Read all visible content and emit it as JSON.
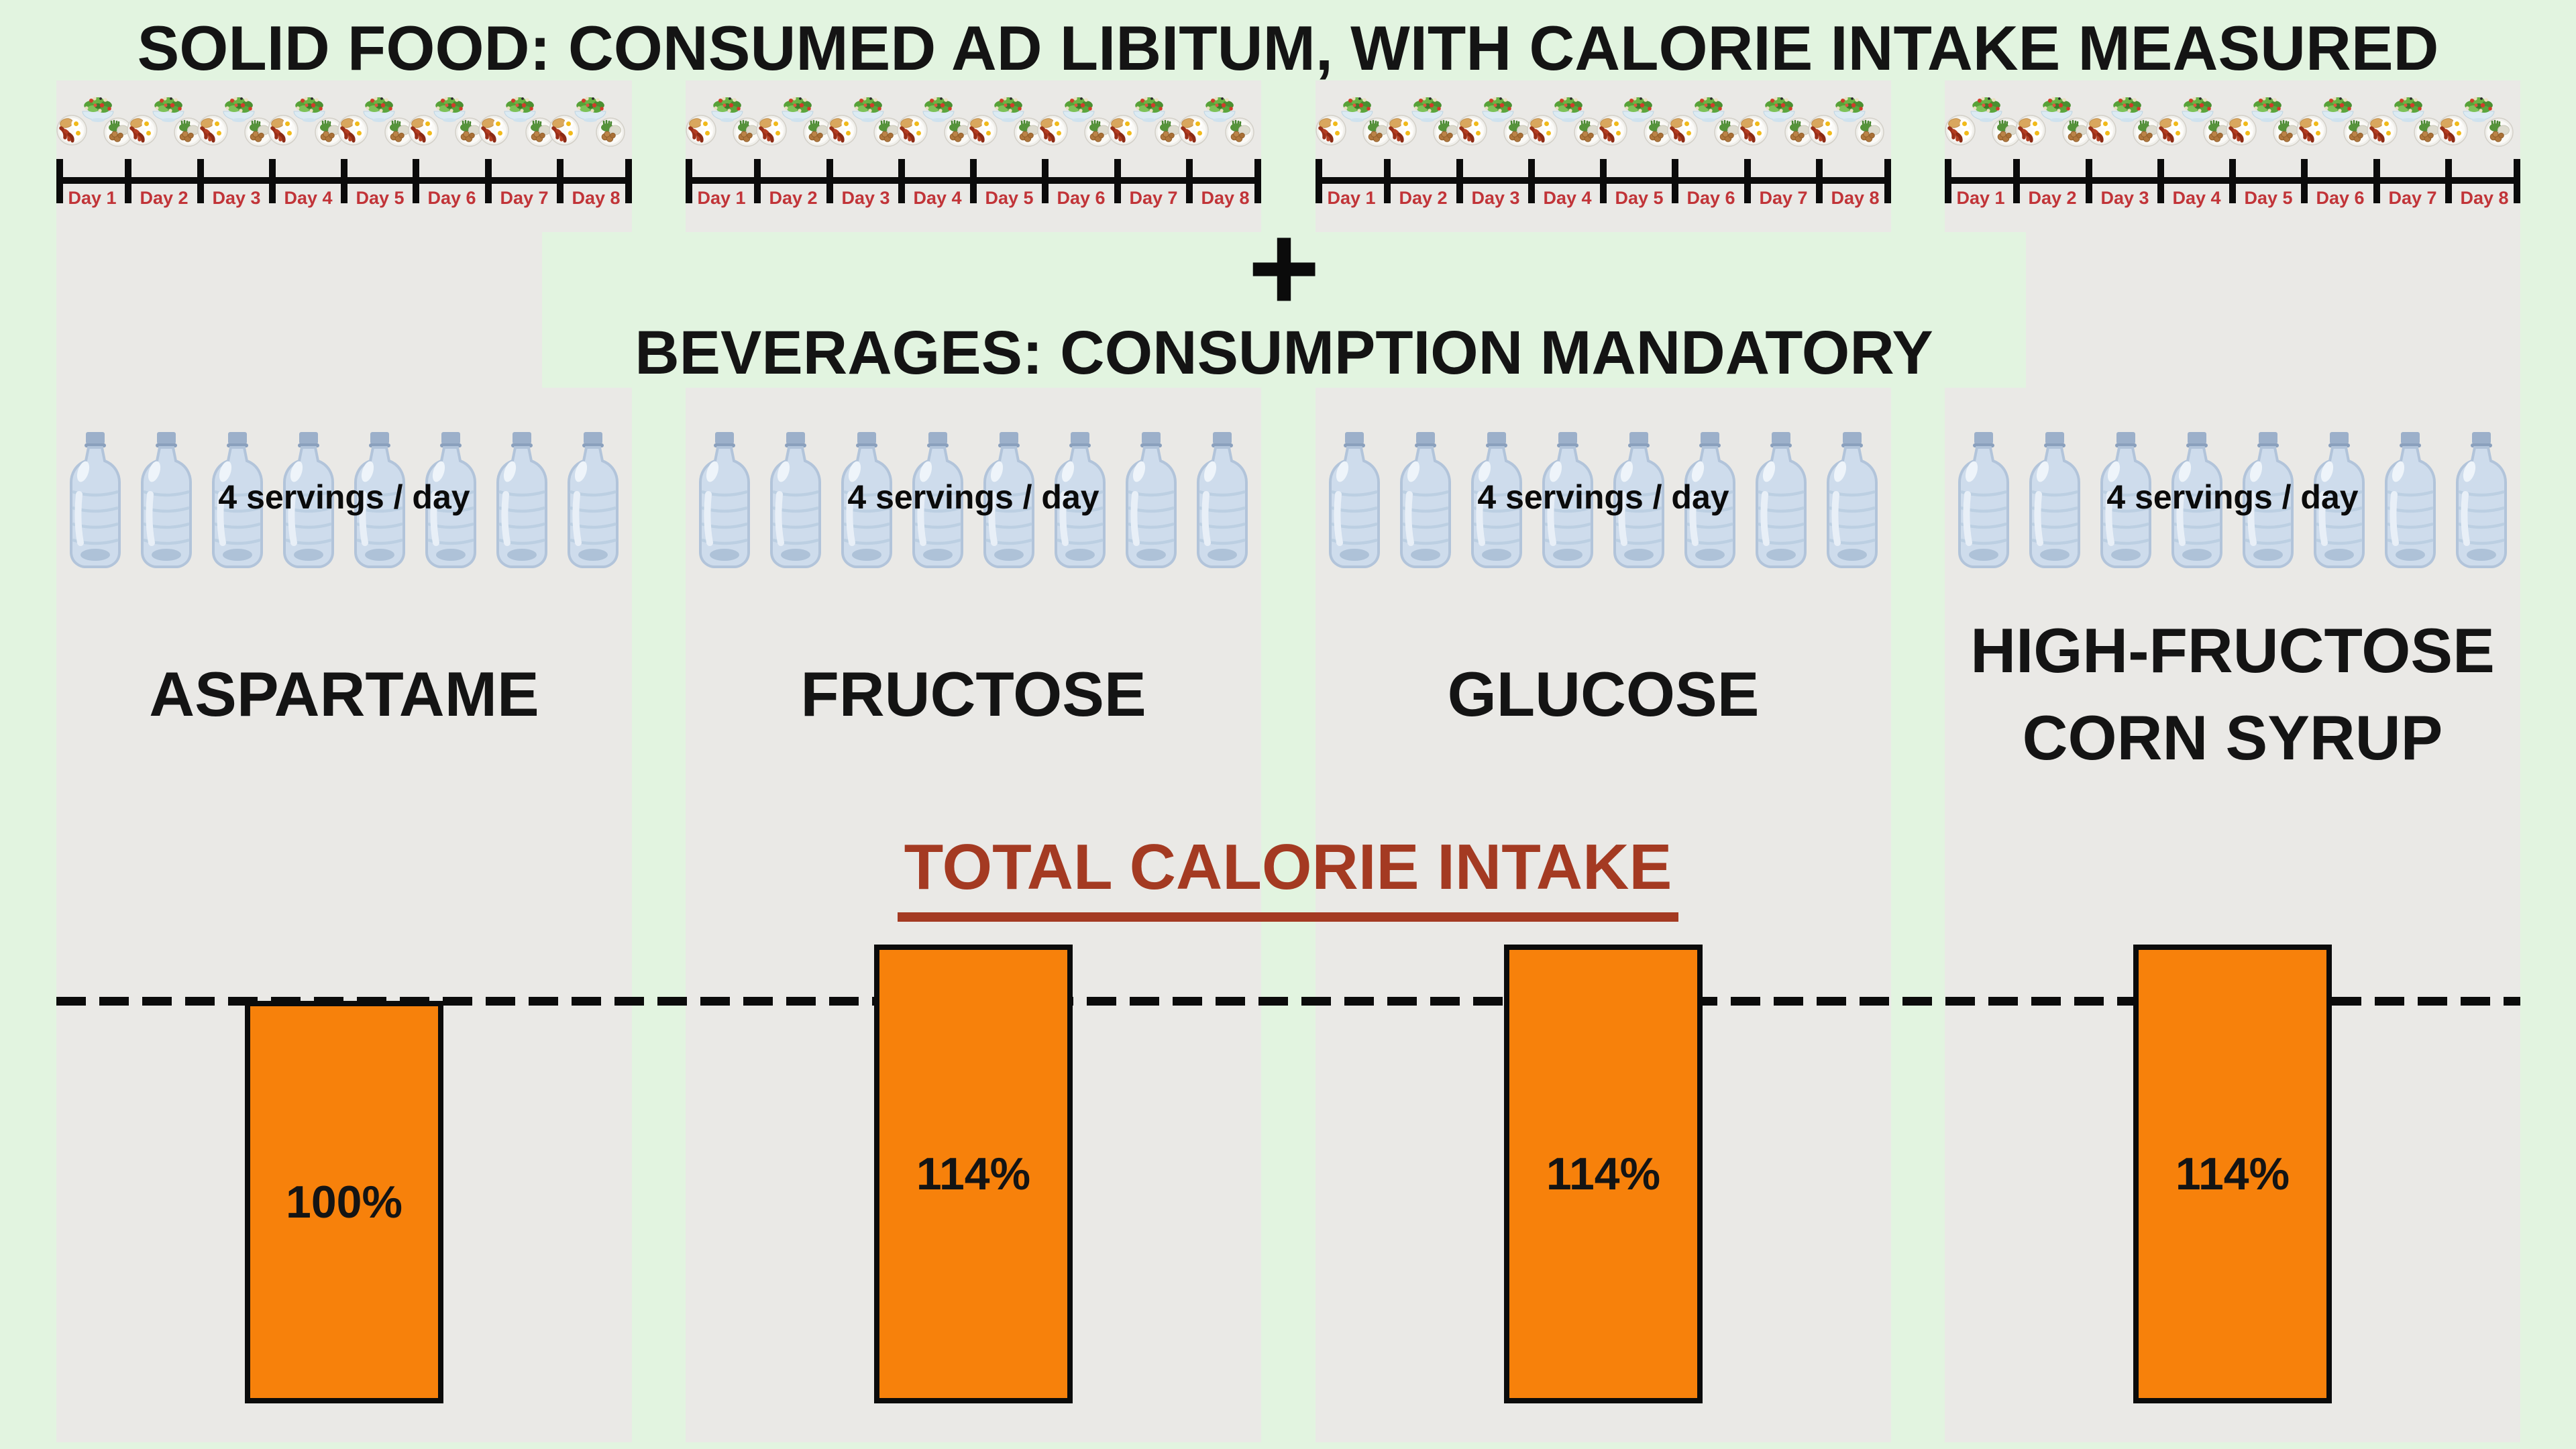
{
  "header": {
    "solid_food_title": "SOLID FOOD: CONSUMED AD LIBITUM, WITH CALORIE INTAKE MEASURED",
    "plus_sign": "+",
    "beverages_title": "BEVERAGES: CONSUMPTION MANDATORY"
  },
  "timeline": {
    "days": [
      "Day 1",
      "Day 2",
      "Day 3",
      "Day 4",
      "Day 5",
      "Day 6",
      "Day 7",
      "Day 8"
    ],
    "icon_cycle": [
      "breakfast-plate",
      "salad-bowl",
      "veggie-plate"
    ],
    "icons_per_group": 24,
    "label_color": "#c13438"
  },
  "beverages": {
    "servings_label": "4 servings / day",
    "bottles_per_group": 8
  },
  "groups": [
    {
      "name": "ASPARTAME",
      "intake_label": "100%",
      "intake_pct": 100
    },
    {
      "name": "FRUCTOSE",
      "intake_label": "114%",
      "intake_pct": 114
    },
    {
      "name": "GLUCOSE",
      "intake_label": "114%",
      "intake_pct": 114
    },
    {
      "name": "HIGH-FRUCTOSE CORN SYRUP",
      "intake_label": "114%",
      "intake_pct": 114
    }
  ],
  "calorie_chart": {
    "heading": "TOTAL CALORIE INTAKE",
    "heading_color": "#a43a22",
    "bar_color": "#f7810b",
    "reference_line_pct": 100
  },
  "chart_data": {
    "type": "bar",
    "title": "TOTAL CALORIE INTAKE",
    "categories": [
      "ASPARTAME",
      "FRUCTOSE",
      "GLUCOSE",
      "HIGH-FRUCTOSE CORN SYRUP"
    ],
    "values": [
      100,
      114,
      114,
      114
    ],
    "unit": "percent of baseline total calorie intake",
    "reference_line": {
      "value": 100,
      "style": "dashed"
    },
    "ylim": [
      0,
      114
    ],
    "legend": "none",
    "grid": "off"
  },
  "colors": {
    "background": "#e2f4e0",
    "panel": "#eae9e6",
    "bar_orange": "#f7810b",
    "day_label_red": "#c13438",
    "heading_brick_red": "#a43a22"
  }
}
